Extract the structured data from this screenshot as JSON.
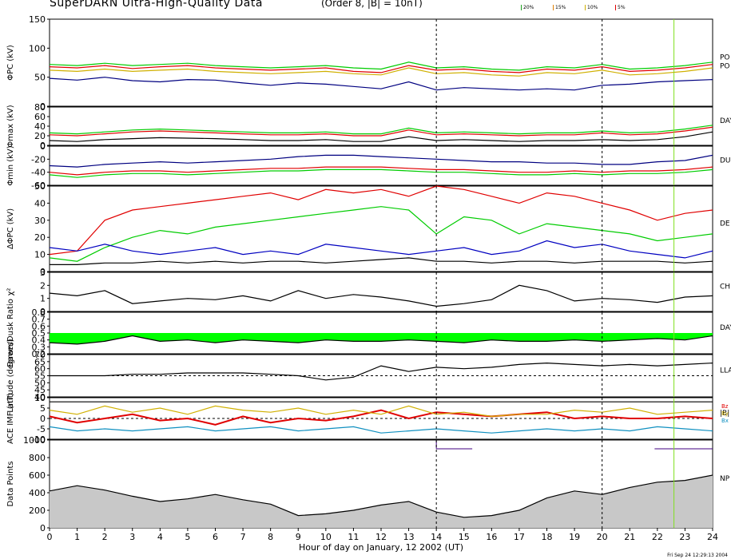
{
  "header": {
    "title": "SuperDARN Ultra-High-Quality Data",
    "subtitle": "(Order 8, |B| = 10nT)",
    "legend": [
      {
        "label": "20%",
        "color": "#20a020"
      },
      {
        "label": "15%",
        "color": "#e08000"
      },
      {
        "label": "10%",
        "color": "#d0b000"
      },
      {
        "label": "5%",
        "color": "#e00000"
      }
    ],
    "timestamp": "Fri Sep 24 12:29:13 2004"
  },
  "xaxis": {
    "label": "Hour of day on January, 12 2002 (UT)",
    "range": [
      0,
      24
    ],
    "ticks": [
      "0",
      "1",
      "2",
      "3",
      "4",
      "5",
      "6",
      "7",
      "8",
      "9",
      "10",
      "11",
      "12",
      "13",
      "14",
      "15",
      "16",
      "17",
      "18",
      "19",
      "20",
      "21",
      "22",
      "23",
      "24"
    ],
    "markers": [
      14,
      20
    ],
    "green_marker": 22.6
  },
  "colors": {
    "black": "#000000",
    "navy": "#000080",
    "red": "#e00000",
    "green": "#00cc00",
    "orange": "#e08000",
    "yellow": "#d0b000",
    "blue": "#0000c0",
    "cyan": "#1090c0",
    "fill_green": "#00ff00",
    "gray": "#c8c8c8",
    "purple": "#400080"
  },
  "panels": [
    {
      "id": "phi-pc",
      "ylabel": "ΦPC (kV)",
      "right_label": "PO\nPO",
      "ticks": [
        "0",
        "50",
        "100",
        "150"
      ],
      "ylim": [
        0,
        150
      ]
    },
    {
      "id": "phi-max",
      "ylabel": "Φmax (kV)",
      "right_label": "DAY",
      "ticks": [
        "0",
        "20",
        "40",
        "60",
        "80"
      ],
      "ylim": [
        0,
        80
      ]
    },
    {
      "id": "phi-min",
      "ylabel": "Φmin (kV)",
      "right_label": "DU",
      "ticks": [
        "-60",
        "-40",
        "-20",
        "0"
      ],
      "ylim": [
        -60,
        0
      ]
    },
    {
      "id": "delta-phi-pc",
      "ylabel": "ΔΦPC (kV)",
      "right_label": "DE",
      "ticks": [
        "0",
        "10",
        "20",
        "30",
        "40",
        "50"
      ],
      "ylim": [
        0,
        50
      ]
    },
    {
      "id": "chi2",
      "ylabel": "χ²",
      "right_label": "CH",
      "ticks": [
        "0",
        "1",
        "2",
        "3"
      ],
      "ylim": [
        0,
        3
      ]
    },
    {
      "id": "ratio",
      "ylabel": "Dawn/Dusk Ratio",
      "right_label": "DAY",
      "ticks": [
        "0.2",
        "0.3",
        "0.4",
        "0.5",
        "0.6",
        "0.7",
        "0.8"
      ],
      "ylim": [
        0.2,
        0.8
      ]
    },
    {
      "id": "latitude",
      "ylabel": "Latitude (degrees)",
      "right_label": "LLA",
      "ticks": [
        "40",
        "45",
        "50",
        "55",
        "60",
        "65",
        "70"
      ],
      "ylim": [
        40,
        70
      ]
    },
    {
      "id": "imf",
      "ylabel": "ACE IMF (nT)",
      "right_label": "|B|",
      "ticks": [
        "-10",
        "-5",
        "0",
        "5",
        "10"
      ],
      "ylim": [
        -10,
        10
      ]
    },
    {
      "id": "data-points",
      "ylabel": "Data Points",
      "right_label": "NP",
      "ticks": [
        "0",
        "200",
        "400",
        "600",
        "800",
        "1000"
      ],
      "ylim": [
        0,
        1000
      ]
    }
  ],
  "imf_labels": [
    {
      "label": "Bz",
      "color": "#e00000"
    },
    {
      "label": "By",
      "color": "#d0b000"
    },
    {
      "label": "Bx",
      "color": "#1090c0"
    }
  ],
  "chart_data": {
    "type": "line",
    "title": "SuperDARN Ultra-High-Quality Data",
    "xlabel": "Hour of day on January, 12 2002 (UT)",
    "xlim": [
      0,
      24
    ],
    "panels": [
      {
        "id": "phi-pc",
        "ylim": [
          0,
          150
        ],
        "series": [
          {
            "color": "#000080",
            "values": [
              48,
              45,
              50,
              44,
              42,
              46,
              45,
              40,
              36,
              40,
              38,
              34,
              30,
              42,
              28,
              32,
              30,
              28,
              30,
              28,
              36,
              38,
              42,
              44,
              46
            ]
          },
          {
            "color": "#e00000",
            "values": [
              68,
              66,
              70,
              65,
              68,
              70,
              66,
              64,
              62,
              64,
              66,
              60,
              58,
              70,
              62,
              64,
              60,
              58,
              64,
              62,
              68,
              60,
              62,
              66,
              72
            ]
          },
          {
            "color": "#00cc00",
            "values": [
              72,
              70,
              74,
              70,
              72,
              74,
              70,
              68,
              66,
              68,
              70,
              66,
              64,
              76,
              66,
              68,
              64,
              62,
              68,
              66,
              72,
              64,
              66,
              70,
              76
            ]
          },
          {
            "color": "#d0b000",
            "values": [
              62,
              60,
              64,
              60,
              62,
              64,
              60,
              58,
              56,
              58,
              60,
              56,
              54,
              66,
              56,
              58,
              54,
              52,
              58,
              56,
              62,
              54,
              56,
              60,
              66
            ]
          }
        ]
      },
      {
        "id": "phi-max",
        "ylim": [
          0,
          80
        ],
        "series": [
          {
            "color": "#000000",
            "values": [
              10,
              8,
              12,
              14,
              16,
              15,
              14,
              12,
              10,
              10,
              12,
              8,
              8,
              18,
              10,
              12,
              10,
              8,
              10,
              10,
              12,
              10,
              12,
              18,
              28
            ]
          },
          {
            "color": "#e00000",
            "values": [
              22,
              20,
              24,
              28,
              30,
              28,
              26,
              24,
              22,
              22,
              24,
              20,
              20,
              32,
              22,
              24,
              22,
              20,
              22,
              22,
              26,
              22,
              24,
              30,
              38
            ]
          },
          {
            "color": "#00cc00",
            "values": [
              26,
              24,
              28,
              32,
              34,
              32,
              30,
              28,
              26,
              26,
              28,
              24,
              24,
              36,
              26,
              28,
              26,
              24,
              26,
              26,
              30,
              26,
              28,
              34,
              42
            ]
          }
        ]
      },
      {
        "id": "phi-min",
        "ylim": [
          -60,
          0
        ],
        "series": [
          {
            "color": "#000080",
            "values": [
              -30,
              -32,
              -28,
              -26,
              -24,
              -26,
              -24,
              -22,
              -20,
              -16,
              -14,
              -14,
              -16,
              -18,
              -20,
              -22,
              -24,
              -24,
              -26,
              -26,
              -28,
              -28,
              -24,
              -22,
              -14
            ]
          },
          {
            "color": "#e00000",
            "values": [
              -40,
              -44,
              -40,
              -38,
              -38,
              -40,
              -38,
              -36,
              -34,
              -34,
              -32,
              -32,
              -32,
              -34,
              -36,
              -36,
              -38,
              -40,
              -40,
              -38,
              -40,
              -38,
              -38,
              -36,
              -32
            ]
          },
          {
            "color": "#00cc00",
            "values": [
              -44,
              -48,
              -44,
              -42,
              -42,
              -44,
              -42,
              -40,
              -38,
              -38,
              -36,
              -36,
              -36,
              -38,
              -40,
              -40,
              -42,
              -44,
              -44,
              -42,
              -44,
              -42,
              -42,
              -40,
              -36
            ]
          }
        ]
      },
      {
        "id": "delta-phi-pc",
        "ylim": [
          0,
          50
        ],
        "series": [
          {
            "color": "#e00000",
            "values": [
              10,
              12,
              30,
              36,
              38,
              40,
              42,
              44,
              46,
              42,
              48,
              46,
              48,
              44,
              50,
              48,
              44,
              40,
              46,
              44,
              40,
              36,
              30,
              34,
              36
            ]
          },
          {
            "color": "#00cc00",
            "values": [
              8,
              6,
              14,
              20,
              24,
              22,
              26,
              28,
              30,
              32,
              34,
              36,
              38,
              36,
              22,
              32,
              30,
              22,
              28,
              26,
              24,
              22,
              18,
              20,
              22
            ]
          },
          {
            "color": "#0000c0",
            "values": [
              14,
              12,
              16,
              12,
              10,
              12,
              14,
              10,
              12,
              10,
              16,
              14,
              12,
              10,
              12,
              14,
              10,
              12,
              18,
              14,
              16,
              12,
              10,
              8,
              12
            ]
          },
          {
            "color": "#000000",
            "values": [
              4,
              4,
              5,
              5,
              6,
              5,
              6,
              5,
              6,
              6,
              5,
              6,
              7,
              8,
              6,
              6,
              5,
              6,
              6,
              5,
              6,
              6,
              6,
              5,
              6
            ]
          }
        ]
      },
      {
        "id": "chi2",
        "ylim": [
          0,
          3
        ],
        "series": [
          {
            "color": "#000000",
            "values": [
              1.4,
              1.2,
              1.6,
              0.6,
              0.8,
              1.0,
              0.9,
              1.2,
              0.8,
              1.6,
              1.0,
              1.3,
              1.1,
              0.8,
              0.4,
              0.6,
              0.9,
              2.0,
              1.6,
              0.8,
              1.0,
              0.9,
              0.7,
              1.1,
              1.2
            ]
          }
        ]
      },
      {
        "id": "ratio",
        "ylim": [
          0.2,
          0.8
        ],
        "series": [
          {
            "color": "#000000",
            "values": [
              0.36,
              0.34,
              0.38,
              0.46,
              0.38,
              0.4,
              0.36,
              0.4,
              0.38,
              0.36,
              0.4,
              0.38,
              0.38,
              0.4,
              0.38,
              0.36,
              0.4,
              0.38,
              0.38,
              0.4,
              0.38,
              0.4,
              0.42,
              0.4,
              0.46
            ]
          }
        ]
      },
      {
        "id": "latitude",
        "ylim": [
          40,
          70
        ],
        "series": [
          {
            "color": "#000000",
            "values": [
              55,
              55,
              55,
              56,
              56,
              57,
              57,
              57,
              56,
              55,
              52,
              54,
              62,
              58,
              61,
              60,
              61,
              63,
              64,
              63,
              62,
              63,
              62,
              63,
              64
            ]
          }
        ],
        "reference": 55
      },
      {
        "id": "imf",
        "ylim": [
          -10,
          10
        ],
        "series": [
          {
            "name": "Bz",
            "color": "#e00000",
            "values": [
              1,
              -2,
              0,
              2,
              -1,
              0,
              -3,
              1,
              -2,
              0,
              -1,
              1,
              4,
              0,
              3,
              2,
              1,
              2,
              3,
              0,
              1,
              0,
              0,
              1,
              0
            ]
          },
          {
            "name": "By",
            "color": "#d0b000",
            "values": [
              4,
              2,
              6,
              3,
              5,
              2,
              6,
              4,
              3,
              5,
              2,
              4,
              2,
              6,
              2,
              3,
              1,
              2,
              2,
              4,
              3,
              5,
              2,
              3,
              4
            ]
          },
          {
            "name": "Bx",
            "color": "#1090c0",
            "values": [
              -4,
              -6,
              -5,
              -6,
              -5,
              -4,
              -6,
              -5,
              -4,
              -6,
              -5,
              -4,
              -7,
              -6,
              -5,
              -6,
              -7,
              -6,
              -5,
              -6,
              -5,
              -6,
              -4,
              -5,
              -6
            ]
          },
          {
            "name": "|B|",
            "color": "#000000",
            "values": [
              8,
              8,
              8,
              8,
              8,
              8,
              8,
              8,
              8,
              8,
              8,
              8,
              8,
              8,
              8,
              8,
              8,
              8,
              8,
              8,
              8,
              8,
              8,
              8,
              8
            ]
          }
        ]
      },
      {
        "id": "data-points",
        "ylim": [
          0,
          1000
        ],
        "series": [
          {
            "color": "#000000",
            "fill": "#c8c8c8",
            "values": [
              420,
              480,
              430,
              360,
              300,
              330,
              380,
              320,
              270,
              140,
              160,
              200,
              260,
              300,
              180,
              120,
              140,
              200,
              340,
              420,
              380,
              460,
              520,
              540,
              600
            ]
          }
        ],
        "marker_line": {
          "color": "#400080",
          "value": 900
        }
      }
    ]
  }
}
